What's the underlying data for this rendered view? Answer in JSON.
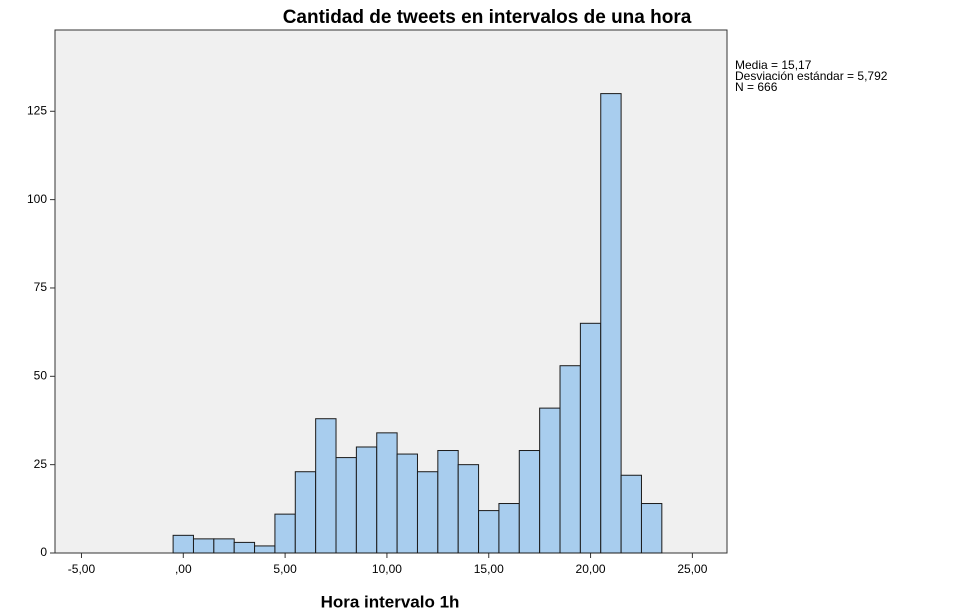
{
  "chart_data": {
    "type": "histogram",
    "title": "Cantidad de tweets en intervalos de una hora",
    "x_label": "Hora intervalo 1h",
    "annotations": [
      "Media = 15,17",
      "Desviación estándar = 5,792",
      "N = 666"
    ],
    "bins": [
      -0.5,
      0.5,
      1.5,
      2.5,
      3.5,
      4.5,
      5.5,
      6.5,
      7.5,
      8.5,
      9.5,
      10.5,
      11.5,
      12.5,
      13.5,
      14.5,
      15.5,
      16.5,
      17.5,
      18.5,
      19.5,
      20.5,
      21.5,
      22.5,
      23.5
    ],
    "values": [
      5,
      4,
      4,
      3,
      2,
      11,
      23,
      38,
      27,
      30,
      34,
      28,
      23,
      29,
      25,
      12,
      14,
      29,
      41,
      53,
      65,
      130,
      22,
      14
    ],
    "color": "#a8cdee",
    "edge_color": "#1a1a1a",
    "background": "#f0f0f0",
    "xlim": [
      -6.3,
      26.7
    ],
    "xticks": [
      {
        "value": -5,
        "label": "-5,00"
      },
      {
        "value": 0,
        "label": ",00"
      },
      {
        "value": 5,
        "label": "5,00"
      },
      {
        "value": 10,
        "label": "10,00"
      },
      {
        "value": 15,
        "label": "15,00"
      },
      {
        "value": 20,
        "label": "20,00"
      },
      {
        "value": 25,
        "label": "25,00"
      }
    ],
    "ylim": [
      0,
      148
    ],
    "yticks": [
      0,
      25,
      50,
      75,
      100,
      125
    ]
  }
}
